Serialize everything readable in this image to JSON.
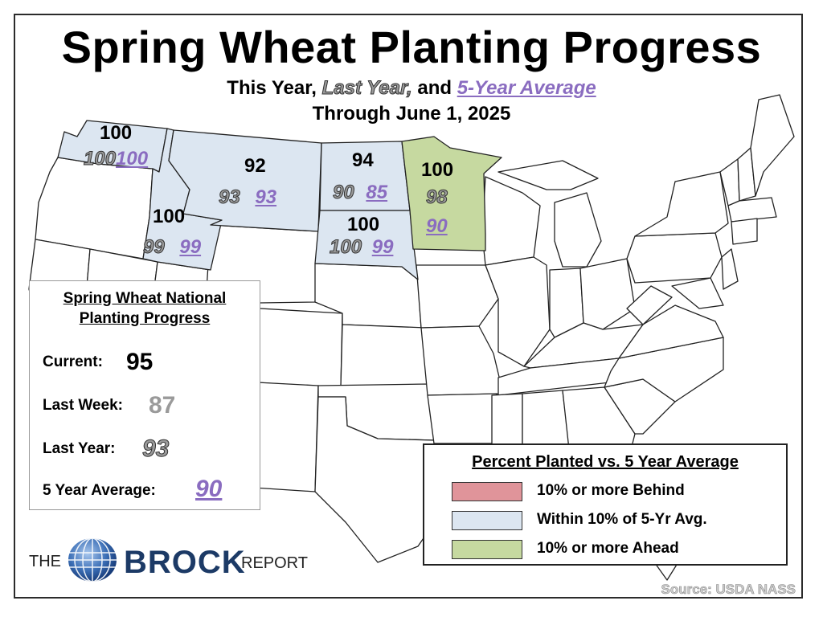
{
  "title": "Spring Wheat Planting Progress",
  "subtitle": {
    "lead": "This Year,",
    "last_year": "Last Year,",
    "and": "and",
    "five_year": "5-Year Average"
  },
  "through": "Through June 1, 2025",
  "colors": {
    "behind": "#e0949a",
    "within": "#dce6f1",
    "ahead": "#c6d9a0",
    "last_year_text": "#9a9a9a",
    "five_year_text": "#8a6cc0"
  },
  "states": [
    {
      "name": "WA",
      "current": "100",
      "last_year": "100",
      "five_year": "100",
      "category": "within"
    },
    {
      "name": "MT",
      "current": "92",
      "last_year": "93",
      "five_year": "93",
      "category": "within"
    },
    {
      "name": "ID",
      "current": "100",
      "last_year": "99",
      "five_year": "99",
      "category": "within"
    },
    {
      "name": "ND",
      "current": "94",
      "last_year": "90",
      "five_year": "85",
      "category": "within"
    },
    {
      "name": "SD",
      "current": "100",
      "last_year": "100",
      "five_year": "99",
      "category": "within"
    },
    {
      "name": "MN",
      "current": "100",
      "last_year": "98",
      "five_year": "90",
      "category": "ahead"
    }
  ],
  "national": {
    "heading_line1": "Spring Wheat National",
    "heading_line2": "Planting Progress",
    "current_label": "Current:",
    "current_value": "95",
    "last_week_label": "Last Week:",
    "last_week_value": "87",
    "last_year_label": "Last Year:",
    "last_year_value": "93",
    "five_year_label": "5 Year Average:",
    "five_year_value": "90"
  },
  "legend": {
    "heading": "Percent Planted vs. 5 Year Average",
    "items": [
      {
        "label": "10% or more Behind",
        "color": "#e0949a"
      },
      {
        "label": "Within 10% of 5-Yr Avg.",
        "color": "#dce6f1"
      },
      {
        "label": "10% or more Ahead",
        "color": "#c6d9a0"
      }
    ]
  },
  "logo": {
    "the": "THE",
    "brock": "BROCK",
    "report": "REPORT"
  },
  "source": "Source: USDA NASS"
}
